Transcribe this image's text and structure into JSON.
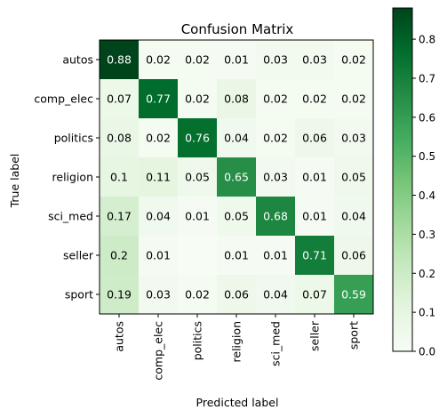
{
  "chart_data": {
    "type": "heatmap",
    "title": "Confusion Matrix",
    "xlabel": "Predicted label",
    "ylabel": "True label",
    "x_categories": [
      "autos",
      "comp_elec",
      "politics",
      "religion",
      "sci_med",
      "seller",
      "sport"
    ],
    "y_categories": [
      "autos",
      "comp_elec",
      "politics",
      "religion",
      "sci_med",
      "seller",
      "sport"
    ],
    "values": [
      [
        0.88,
        0.02,
        0.02,
        0.01,
        0.03,
        0.03,
        0.02
      ],
      [
        0.07,
        0.77,
        0.02,
        0.08,
        0.02,
        0.02,
        0.02
      ],
      [
        0.08,
        0.02,
        0.76,
        0.04,
        0.02,
        0.06,
        0.03
      ],
      [
        0.1,
        0.11,
        0.05,
        0.65,
        0.03,
        0.01,
        0.05
      ],
      [
        0.17,
        0.04,
        0.01,
        0.05,
        0.68,
        0.01,
        0.04
      ],
      [
        0.2,
        0.01,
        0.0,
        0.01,
        0.01,
        0.71,
        0.06
      ],
      [
        0.19,
        0.03,
        0.02,
        0.06,
        0.04,
        0.07,
        0.59
      ]
    ],
    "cell_labels": [
      [
        "0.88",
        "0.02",
        "0.02",
        "0.01",
        "0.03",
        "0.03",
        "0.02"
      ],
      [
        "0.07",
        "0.77",
        "0.02",
        "0.08",
        "0.02",
        "0.02",
        "0.02"
      ],
      [
        "0.08",
        "0.02",
        "0.76",
        "0.04",
        "0.02",
        "0.06",
        "0.03"
      ],
      [
        "0.1",
        "0.11",
        "0.05",
        "0.65",
        "0.03",
        "0.01",
        "0.05"
      ],
      [
        "0.17",
        "0.04",
        "0.01",
        "0.05",
        "0.68",
        "0.01",
        "0.04"
      ],
      [
        "0.2",
        "0.01",
        "",
        "0.01",
        "0.01",
        "0.71",
        "0.06"
      ],
      [
        "0.19",
        "0.03",
        "0.02",
        "0.06",
        "0.04",
        "0.07",
        "0.59"
      ]
    ],
    "colorbar": {
      "range": [
        0.0,
        0.88
      ],
      "ticks": [
        0.0,
        0.1,
        0.2,
        0.3,
        0.4,
        0.5,
        0.6,
        0.7,
        0.8
      ],
      "tick_labels": [
        "0.0",
        "0.1",
        "0.2",
        "0.3",
        "0.4",
        "0.5",
        "0.6",
        "0.7",
        "0.8"
      ]
    },
    "colormap": "Greens",
    "text_color_dark": "#000000",
    "text_color_light": "#ffffff",
    "grid": false
  }
}
